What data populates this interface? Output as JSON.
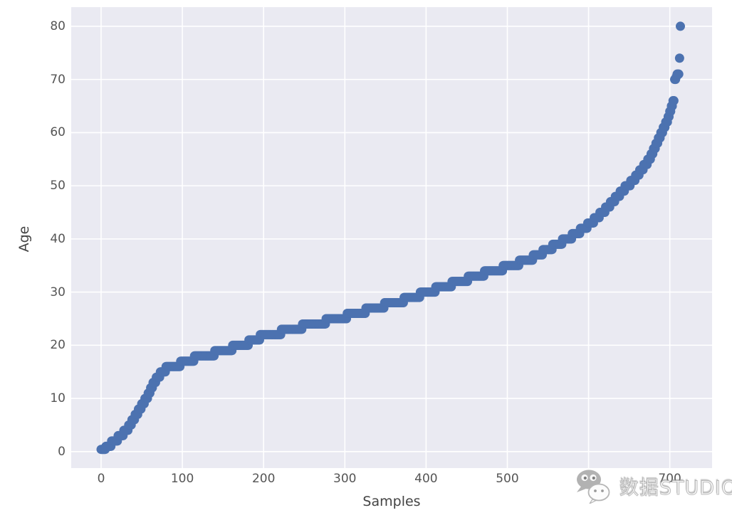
{
  "chart_data": {
    "type": "scatter",
    "title": "",
    "xlabel": "Samples",
    "ylabel": "Age",
    "x_ticks": [
      0,
      100,
      200,
      300,
      400,
      500,
      600,
      700
    ],
    "y_ticks": [
      0,
      10,
      20,
      30,
      40,
      50,
      60,
      70,
      80
    ],
    "xlim": [
      -36.8,
      752
    ],
    "ylim": [
      -3.1,
      83.6
    ],
    "grid": true,
    "legend_position": "none",
    "n_points": 714,
    "series_description": "Ages sorted ascending versus sample index; values are piecewise-constant runs encoded as [run_start_index, age] anchors covering samples 0..713",
    "age_run_anchors": [
      [
        0,
        0.42
      ],
      [
        6,
        1
      ],
      [
        13,
        2
      ],
      [
        21,
        3
      ],
      [
        28,
        4
      ],
      [
        34,
        5
      ],
      [
        38,
        6
      ],
      [
        42,
        7
      ],
      [
        46,
        8
      ],
      [
        50,
        9
      ],
      [
        54,
        10
      ],
      [
        58,
        11
      ],
      [
        61,
        12
      ],
      [
        64,
        13
      ],
      [
        68,
        14
      ],
      [
        73,
        15
      ],
      [
        80,
        16
      ],
      [
        98,
        17
      ],
      [
        115,
        18
      ],
      [
        140,
        19
      ],
      [
        162,
        20
      ],
      [
        182,
        21
      ],
      [
        196,
        22
      ],
      [
        222,
        23
      ],
      [
        248,
        24
      ],
      [
        277,
        25
      ],
      [
        303,
        26
      ],
      [
        326,
        27
      ],
      [
        349,
        28
      ],
      [
        373,
        29
      ],
      [
        393,
        30
      ],
      [
        412,
        31
      ],
      [
        432,
        32
      ],
      [
        452,
        33
      ],
      [
        472,
        34
      ],
      [
        495,
        35
      ],
      [
        515,
        36
      ],
      [
        532,
        37
      ],
      [
        544,
        38
      ],
      [
        556,
        39
      ],
      [
        568,
        40
      ],
      [
        580,
        41
      ],
      [
        590,
        42
      ],
      [
        599,
        43
      ],
      [
        607,
        44
      ],
      [
        614,
        45
      ],
      [
        621,
        46
      ],
      [
        627,
        47
      ],
      [
        633,
        48
      ],
      [
        639,
        49
      ],
      [
        645,
        50
      ],
      [
        652,
        51
      ],
      [
        658,
        52
      ],
      [
        663,
        53
      ],
      [
        668,
        54
      ],
      [
        673,
        55
      ],
      [
        677,
        56
      ],
      [
        680,
        57
      ],
      [
        683,
        58
      ],
      [
        686,
        59
      ],
      [
        689,
        60
      ],
      [
        692,
        61
      ],
      [
        695,
        62
      ],
      [
        698,
        63
      ],
      [
        700,
        64
      ],
      [
        702,
        65
      ],
      [
        704,
        66
      ],
      [
        706,
        70
      ],
      [
        708,
        70.5
      ],
      [
        709,
        71
      ],
      [
        712,
        74
      ],
      [
        713,
        80
      ]
    ],
    "age_min": 0.42,
    "age_max": 80,
    "outlier_ages": [
      70,
      70,
      70.5,
      71,
      71,
      74,
      80
    ],
    "point_color": "#4C72B0",
    "plot_bg_color": "#EAEAF2",
    "grid_color": "#FFFFFF",
    "tick_label_color": "#555555",
    "axis_label_color": "#444444",
    "point_radius_px": 6.5
  },
  "watermark": {
    "text": "数据STUDIO",
    "icon": "wechat-icon"
  }
}
